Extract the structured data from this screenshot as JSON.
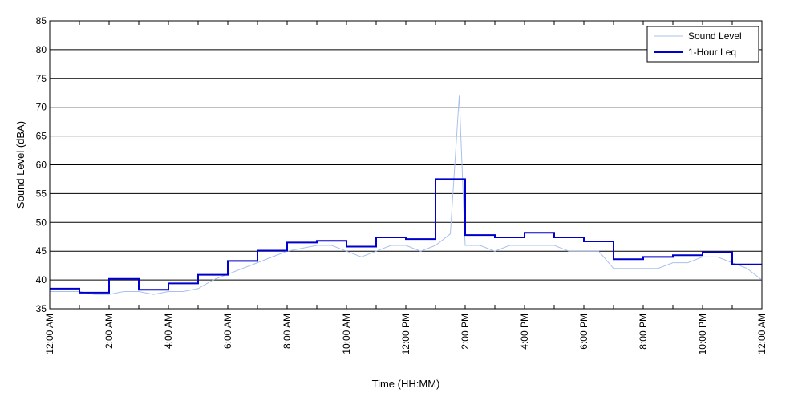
{
  "chart_data": {
    "type": "line",
    "title": "",
    "xlabel": "Time (HH:MM)",
    "ylabel": "Sound Level (dBA)",
    "ylim": [
      35,
      85
    ],
    "xlim_hours": [
      0,
      24
    ],
    "y_ticks": [
      35,
      40,
      45,
      50,
      55,
      60,
      65,
      70,
      75,
      80,
      85
    ],
    "x_tick_labels": [
      "12:00 AM",
      "2:00 AM",
      "4:00 AM",
      "6:00 AM",
      "8:00 AM",
      "10:00 AM",
      "12:00 PM",
      "2:00 PM",
      "4:00 PM",
      "6:00 PM",
      "8:00 PM",
      "10:00 PM",
      "12:00 AM"
    ],
    "grid": "horizontal",
    "legend_position": "top-right",
    "legend": [
      "Sound Level",
      "1-Hour Leq"
    ],
    "colors": {
      "sound_level": "#a9c0ee",
      "leq": "#0000cc"
    },
    "series": [
      {
        "name": "Sound Level",
        "x_hours": [
          0,
          0.5,
          1,
          1.5,
          2,
          2.5,
          3,
          3.5,
          4,
          4.5,
          5,
          5.5,
          6,
          6.5,
          7,
          7.5,
          8,
          8.5,
          9,
          9.5,
          10,
          10.5,
          11,
          11.5,
          12,
          12.5,
          13,
          13.5,
          13.8,
          14,
          14.5,
          15,
          15.5,
          16,
          16.5,
          17,
          17.5,
          18,
          18.5,
          19,
          19.5,
          20,
          20.5,
          21,
          21.5,
          22,
          22.5,
          23,
          23.5,
          24
        ],
        "values": [
          38,
          38,
          38,
          37.5,
          37.5,
          38,
          38,
          37.5,
          38,
          38,
          38.5,
          40,
          41,
          42,
          43,
          44,
          45,
          45.5,
          46,
          46,
          45,
          44,
          45,
          46,
          46,
          45,
          46,
          48,
          72,
          46,
          46,
          45,
          46,
          46,
          46,
          46,
          45,
          45,
          45,
          42,
          42,
          42,
          42,
          43,
          43,
          44,
          44,
          43,
          42,
          40
        ]
      },
      {
        "name": "1-Hour Leq",
        "x_hours": [
          0,
          1,
          2,
          3,
          4,
          5,
          6,
          7,
          8,
          9,
          10,
          11,
          12,
          13,
          14,
          15,
          16,
          17,
          18,
          19,
          20,
          21,
          22,
          23
        ],
        "values": [
          38.5,
          37.8,
          40.2,
          38.3,
          39.4,
          40.9,
          43.3,
          45.1,
          46.5,
          46.8,
          45.8,
          47.4,
          47.1,
          57.5,
          47.8,
          47.4,
          48.2,
          47.4,
          46.7,
          43.6,
          44.0,
          44.3,
          44.8,
          42.7
        ]
      }
    ]
  }
}
